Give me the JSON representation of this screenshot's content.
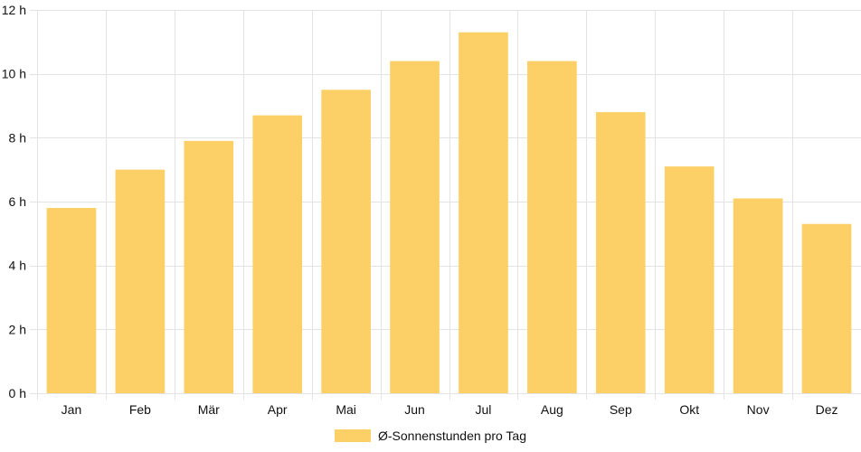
{
  "chart_data": {
    "type": "bar",
    "categories": [
      "Jan",
      "Feb",
      "Mär",
      "Apr",
      "Mai",
      "Jun",
      "Jul",
      "Aug",
      "Sep",
      "Okt",
      "Nov",
      "Dez"
    ],
    "series": [
      {
        "name": "Ø-Sonnenstunden pro Tag",
        "values": [
          5.8,
          7.0,
          7.9,
          8.7,
          9.5,
          10.4,
          11.3,
          10.4,
          8.8,
          7.1,
          6.1,
          5.3
        ],
        "color": "#fdd067"
      }
    ],
    "y_tick_labels": [
      "0 h",
      "2 h",
      "4 h",
      "6 h",
      "8 h",
      "10 h",
      "12 h"
    ],
    "y_ticks": [
      0,
      2,
      4,
      6,
      8,
      10,
      12
    ],
    "ylim": [
      0,
      12
    ],
    "grid": true,
    "legend_position": "bottom"
  }
}
